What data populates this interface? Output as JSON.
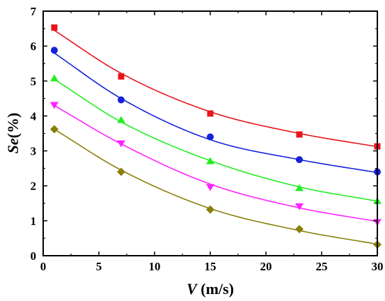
{
  "chart_data": {
    "type": "scatter",
    "xlabel": {
      "italic": "V",
      "rest": " (m/s)"
    },
    "ylabel": {
      "italic": "Se",
      "rest": "(%)"
    },
    "xlim": [
      0,
      30
    ],
    "ylim": [
      0,
      7
    ],
    "xticks": [
      0,
      5,
      10,
      15,
      20,
      25,
      30
    ],
    "yticks": [
      0,
      1,
      2,
      3,
      4,
      5,
      6,
      7
    ],
    "x": [
      1,
      7,
      15,
      23,
      30
    ],
    "series": [
      {
        "marker": "square",
        "color": "#e8141a",
        "values": [
          6.53,
          5.13,
          4.07,
          3.47,
          3.13
        ],
        "fit": [
          6.45,
          5.22,
          4.12,
          3.5,
          3.12
        ]
      },
      {
        "marker": "circle",
        "color": "#1422d8",
        "values": [
          5.88,
          4.46,
          3.4,
          2.75,
          2.4
        ],
        "fit": [
          5.8,
          4.5,
          3.32,
          2.75,
          2.38
        ]
      },
      {
        "marker": "triangle-up",
        "color": "#22ee22",
        "values": [
          5.07,
          3.88,
          2.7,
          1.93,
          1.56
        ],
        "fit": [
          5.05,
          3.83,
          2.72,
          1.97,
          1.56
        ]
      },
      {
        "marker": "triangle-down",
        "color": "#ff22ff",
        "values": [
          4.32,
          3.22,
          1.97,
          1.42,
          0.97
        ],
        "fit": [
          4.3,
          3.2,
          2.05,
          1.37,
          0.98
        ]
      },
      {
        "marker": "diamond",
        "color": "#8a7f0a",
        "values": [
          3.62,
          2.4,
          1.32,
          0.76,
          0.32
        ],
        "fit": [
          3.62,
          2.45,
          1.35,
          0.72,
          0.33
        ]
      }
    ],
    "legend": "none",
    "grid": false
  }
}
